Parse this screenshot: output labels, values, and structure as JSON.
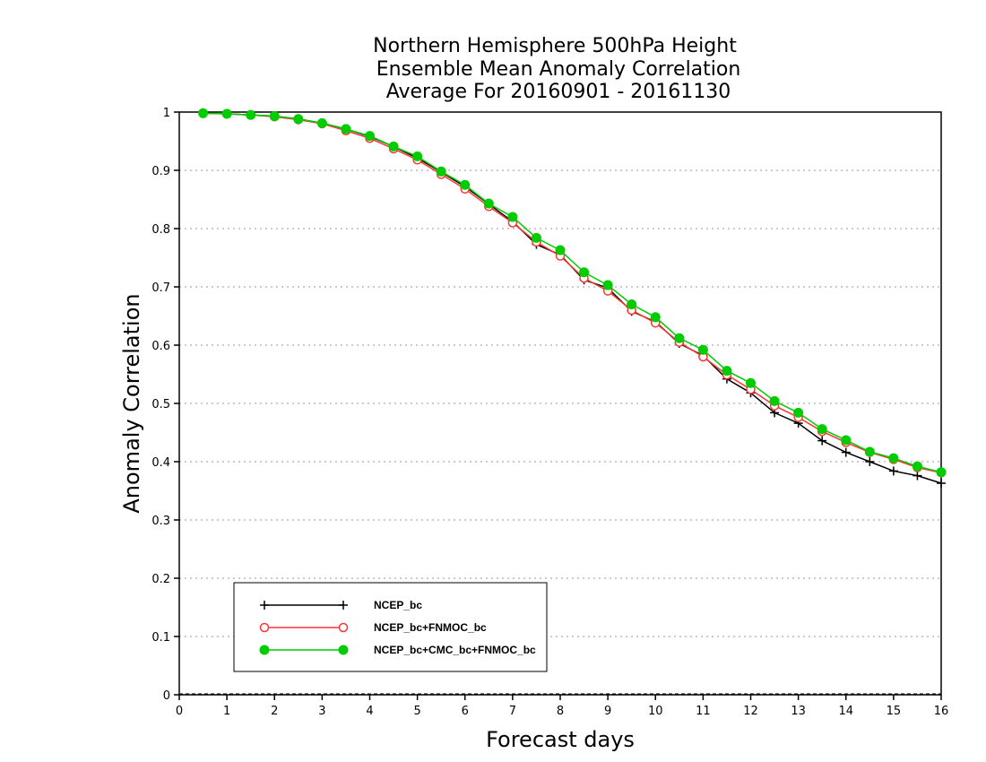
{
  "chart_data": {
    "type": "line",
    "title": [
      "Northern Hemisphere 500hPa Height",
      "Ensemble Mean Anomaly Correlation",
      "Average For 20160901 - 20161130"
    ],
    "xlabel": "Forecast days",
    "ylabel": "Anomaly Correlation",
    "xlim": [
      0,
      16
    ],
    "ylim": [
      0,
      1
    ],
    "xticks": [
      "0",
      "1",
      "2",
      "3",
      "4",
      "5",
      "6",
      "7",
      "8",
      "9",
      "10",
      "11",
      "12",
      "13",
      "14",
      "15",
      "16"
    ],
    "yticks": [
      "0",
      "0.1",
      "0.2",
      "0.3",
      "0.4",
      "0.5",
      "0.6",
      "0.7",
      "0.8",
      "0.9",
      "1"
    ],
    "grid": "horizontal dotted",
    "legend_position": "bottom-left",
    "x": [
      0.5,
      1,
      1.5,
      2,
      2.5,
      3,
      3.5,
      4,
      4.5,
      5,
      5.5,
      6,
      6.5,
      7,
      7.5,
      8,
      8.5,
      9,
      9.5,
      10,
      10.5,
      11,
      11.5,
      12,
      12.5,
      13,
      13.5,
      14,
      14.5,
      15,
      15.5,
      16
    ],
    "series": [
      {
        "name": "NCEP_bc",
        "color": "#000000",
        "marker": "plus",
        "values": [
          0.998,
          0.997,
          0.995,
          0.993,
          0.988,
          0.981,
          0.971,
          0.958,
          0.941,
          0.921,
          0.897,
          0.872,
          0.842,
          0.812,
          0.773,
          0.755,
          0.712,
          0.698,
          0.658,
          0.64,
          0.603,
          0.582,
          0.542,
          0.518,
          0.484,
          0.466,
          0.436,
          0.416,
          0.4,
          0.384,
          0.376,
          0.363
        ]
      },
      {
        "name": "NCEP_bc+FNMOC_bc",
        "color": "#ff3333",
        "marker": "open-circle",
        "values": [
          0.998,
          0.997,
          0.995,
          0.992,
          0.987,
          0.98,
          0.968,
          0.955,
          0.937,
          0.918,
          0.893,
          0.868,
          0.838,
          0.81,
          0.777,
          0.753,
          0.715,
          0.693,
          0.66,
          0.638,
          0.605,
          0.58,
          0.549,
          0.524,
          0.496,
          0.476,
          0.452,
          0.433,
          0.416,
          0.404,
          0.39,
          0.381
        ]
      },
      {
        "name": "NCEP_bc+CMC_bc+FNMOC_bc",
        "color": "#00cc00",
        "marker": "filled-circle",
        "values": [
          0.998,
          0.997,
          0.995,
          0.993,
          0.988,
          0.981,
          0.971,
          0.959,
          0.941,
          0.924,
          0.898,
          0.875,
          0.843,
          0.82,
          0.784,
          0.763,
          0.725,
          0.703,
          0.67,
          0.648,
          0.612,
          0.592,
          0.556,
          0.535,
          0.504,
          0.484,
          0.456,
          0.437,
          0.417,
          0.406,
          0.392,
          0.382
        ]
      }
    ]
  }
}
